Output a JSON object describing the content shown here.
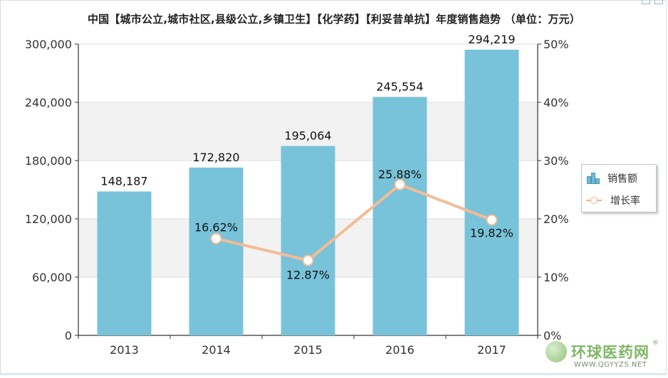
{
  "title": "中国【城市公立,城市社区,县级公立,乡镇卫生】【化学药】【利妥昔单抗】年度销售趋势 （单位：万元）",
  "legend": {
    "bar_label": "销售额",
    "line_label": "增长率"
  },
  "watermark": {
    "brand": "环球医药网",
    "reg": "®",
    "url": "WWW.QGYYZS.NET"
  },
  "colors": {
    "bar": "#78c3da",
    "line": "#f5bb96",
    "band": "#f2f2f2",
    "axis": "#333333"
  },
  "chart_data": {
    "type": "bar",
    "title": "中国【城市公立,城市社区,县级公立,乡镇卫生】【化学药】【利妥昔单抗】年度销售趋势 （单位：万元）",
    "categories": [
      "2013",
      "2014",
      "2015",
      "2016",
      "2017"
    ],
    "series": [
      {
        "name": "销售额",
        "type": "bar",
        "axis": "left",
        "values": [
          148187,
          172820,
          195064,
          245554,
          294219
        ],
        "labels": [
          "148,187",
          "172,820",
          "195,064",
          "245,554",
          "294,219"
        ]
      },
      {
        "name": "增长率",
        "type": "line",
        "axis": "right",
        "values": [
          null,
          16.62,
          12.87,
          25.88,
          19.82
        ],
        "labels": [
          "",
          "16.62%",
          "12.87%",
          "25.88%",
          "19.82%"
        ]
      }
    ],
    "ylim": [
      0,
      300000
    ],
    "yticks": [
      0,
      60000,
      120000,
      180000,
      240000,
      300000
    ],
    "ytick_labels": [
      "0",
      "60,000",
      "120,000",
      "180,000",
      "240,000",
      "300,000"
    ],
    "y2lim": [
      0,
      50
    ],
    "y2ticks": [
      0,
      10,
      20,
      30,
      40,
      50
    ],
    "y2tick_labels": [
      "0%",
      "10%",
      "20%",
      "30%",
      "40%",
      "50%"
    ],
    "legend_position": "right",
    "grid": true
  }
}
